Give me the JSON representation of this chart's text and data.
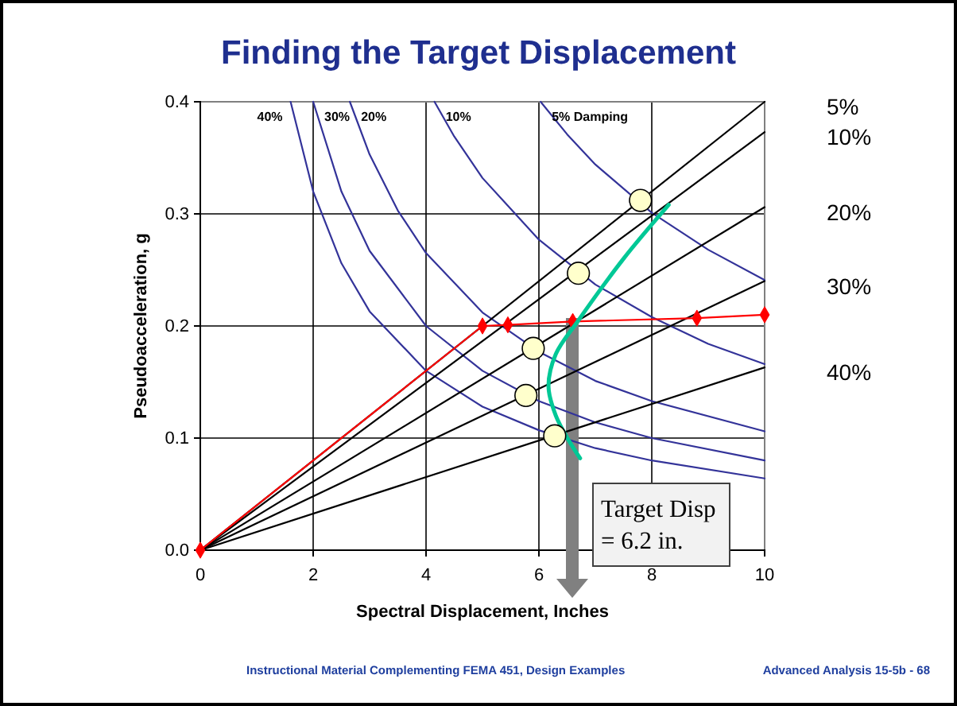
{
  "chart_data": {
    "type": "line",
    "title": "Finding the Target Displacement",
    "xlabel": "Spectral Displacement, Inches",
    "ylabel": "Pseudoacceleration, g",
    "xlim": [
      0,
      10
    ],
    "ylim": [
      0,
      0.4
    ],
    "xticks": [
      0,
      2,
      4,
      6,
      8,
      10
    ],
    "yticks": [
      {
        "value": 0,
        "label": "0.0"
      },
      {
        "value": 0.1,
        "label": "0.1"
      },
      {
        "value": 0.2,
        "label": "0.2"
      },
      {
        "value": 0.3,
        "label": "0.3"
      },
      {
        "value": 0.4,
        "label": "0.4"
      }
    ],
    "grid": true,
    "series": [
      {
        "name": "40%",
        "color": "#333399",
        "marker": "none",
        "x": [
          1.6,
          2,
          2.5,
          3,
          4,
          5,
          6,
          7,
          8,
          10
        ],
        "values": [
          0.4,
          0.32,
          0.256,
          0.213,
          0.16,
          0.128,
          0.107,
          0.091,
          0.08,
          0.064
        ]
      },
      {
        "name": "30%",
        "color": "#333399",
        "marker": "none",
        "x": [
          2,
          2.5,
          3,
          4,
          5,
          6,
          7,
          8,
          10
        ],
        "values": [
          0.4,
          0.32,
          0.267,
          0.2,
          0.16,
          0.133,
          0.114,
          0.1,
          0.08
        ]
      },
      {
        "name": "20%",
        "color": "#333399",
        "marker": "none",
        "x": [
          2.65,
          3,
          3.5,
          4,
          5,
          6,
          7,
          8,
          10
        ],
        "values": [
          0.4,
          0.353,
          0.303,
          0.265,
          0.212,
          0.177,
          0.151,
          0.133,
          0.106
        ]
      },
      {
        "name": "10%",
        "color": "#333399",
        "marker": "none",
        "x": [
          4.15,
          4.5,
          5,
          6,
          7,
          8,
          9,
          10
        ],
        "values": [
          0.4,
          0.369,
          0.332,
          0.277,
          0.237,
          0.208,
          0.184,
          0.166
        ]
      },
      {
        "name": "5% Damping",
        "color": "#333399",
        "marker": "none",
        "x": [
          6.03,
          6.5,
          7,
          8,
          9,
          10
        ],
        "values": [
          0.4,
          0.371,
          0.344,
          0.301,
          0.268,
          0.241
        ]
      },
      {
        "name": "5%",
        "color": "#000000",
        "marker": "none",
        "x": [
          0,
          10
        ],
        "values": [
          0,
          0.4
        ]
      },
      {
        "name": "10%",
        "color": "#000000",
        "marker": "none",
        "x": [
          0,
          10
        ],
        "values": [
          0,
          0.373
        ]
      },
      {
        "name": "20%",
        "color": "#000000",
        "marker": "none",
        "x": [
          0,
          10
        ],
        "values": [
          0,
          0.306
        ]
      },
      {
        "name": "30%",
        "color": "#000000",
        "marker": "none",
        "x": [
          0,
          10
        ],
        "values": [
          0,
          0.24
        ]
      },
      {
        "name": "40%",
        "color": "#000000",
        "marker": "none",
        "x": [
          0,
          10
        ],
        "values": [
          0,
          0.163
        ]
      },
      {
        "color": "#ff0000",
        "marker": "diamond",
        "x": [
          0,
          5,
          5.45,
          6.6,
          8.8,
          10
        ],
        "values": [
          0,
          0.2,
          0.201,
          0.204,
          0.207,
          0.21
        ]
      },
      {
        "color": "#00c896",
        "marker": "none",
        "x": [
          8.3,
          7.5,
          6.7,
          6.3,
          6.17,
          6.3,
          6.54,
          6.73
        ],
        "values": [
          0.308,
          0.26,
          0.205,
          0.175,
          0.146,
          0.12,
          0.097,
          0.082
        ]
      },
      {
        "type": "scatter",
        "color": "#ffffcc",
        "marker": "circle",
        "x": [
          7.8,
          6.7,
          5.9,
          5.77,
          6.28
        ],
        "values": [
          0.312,
          0.247,
          0.18,
          0.138,
          0.102
        ]
      }
    ],
    "annotations": [
      "Target Disp = 6.2 in.",
      "Instructional Material Complementing FEMA 451,  Design Examples",
      "Advanced Analysis  15-5b - 68"
    ]
  }
}
